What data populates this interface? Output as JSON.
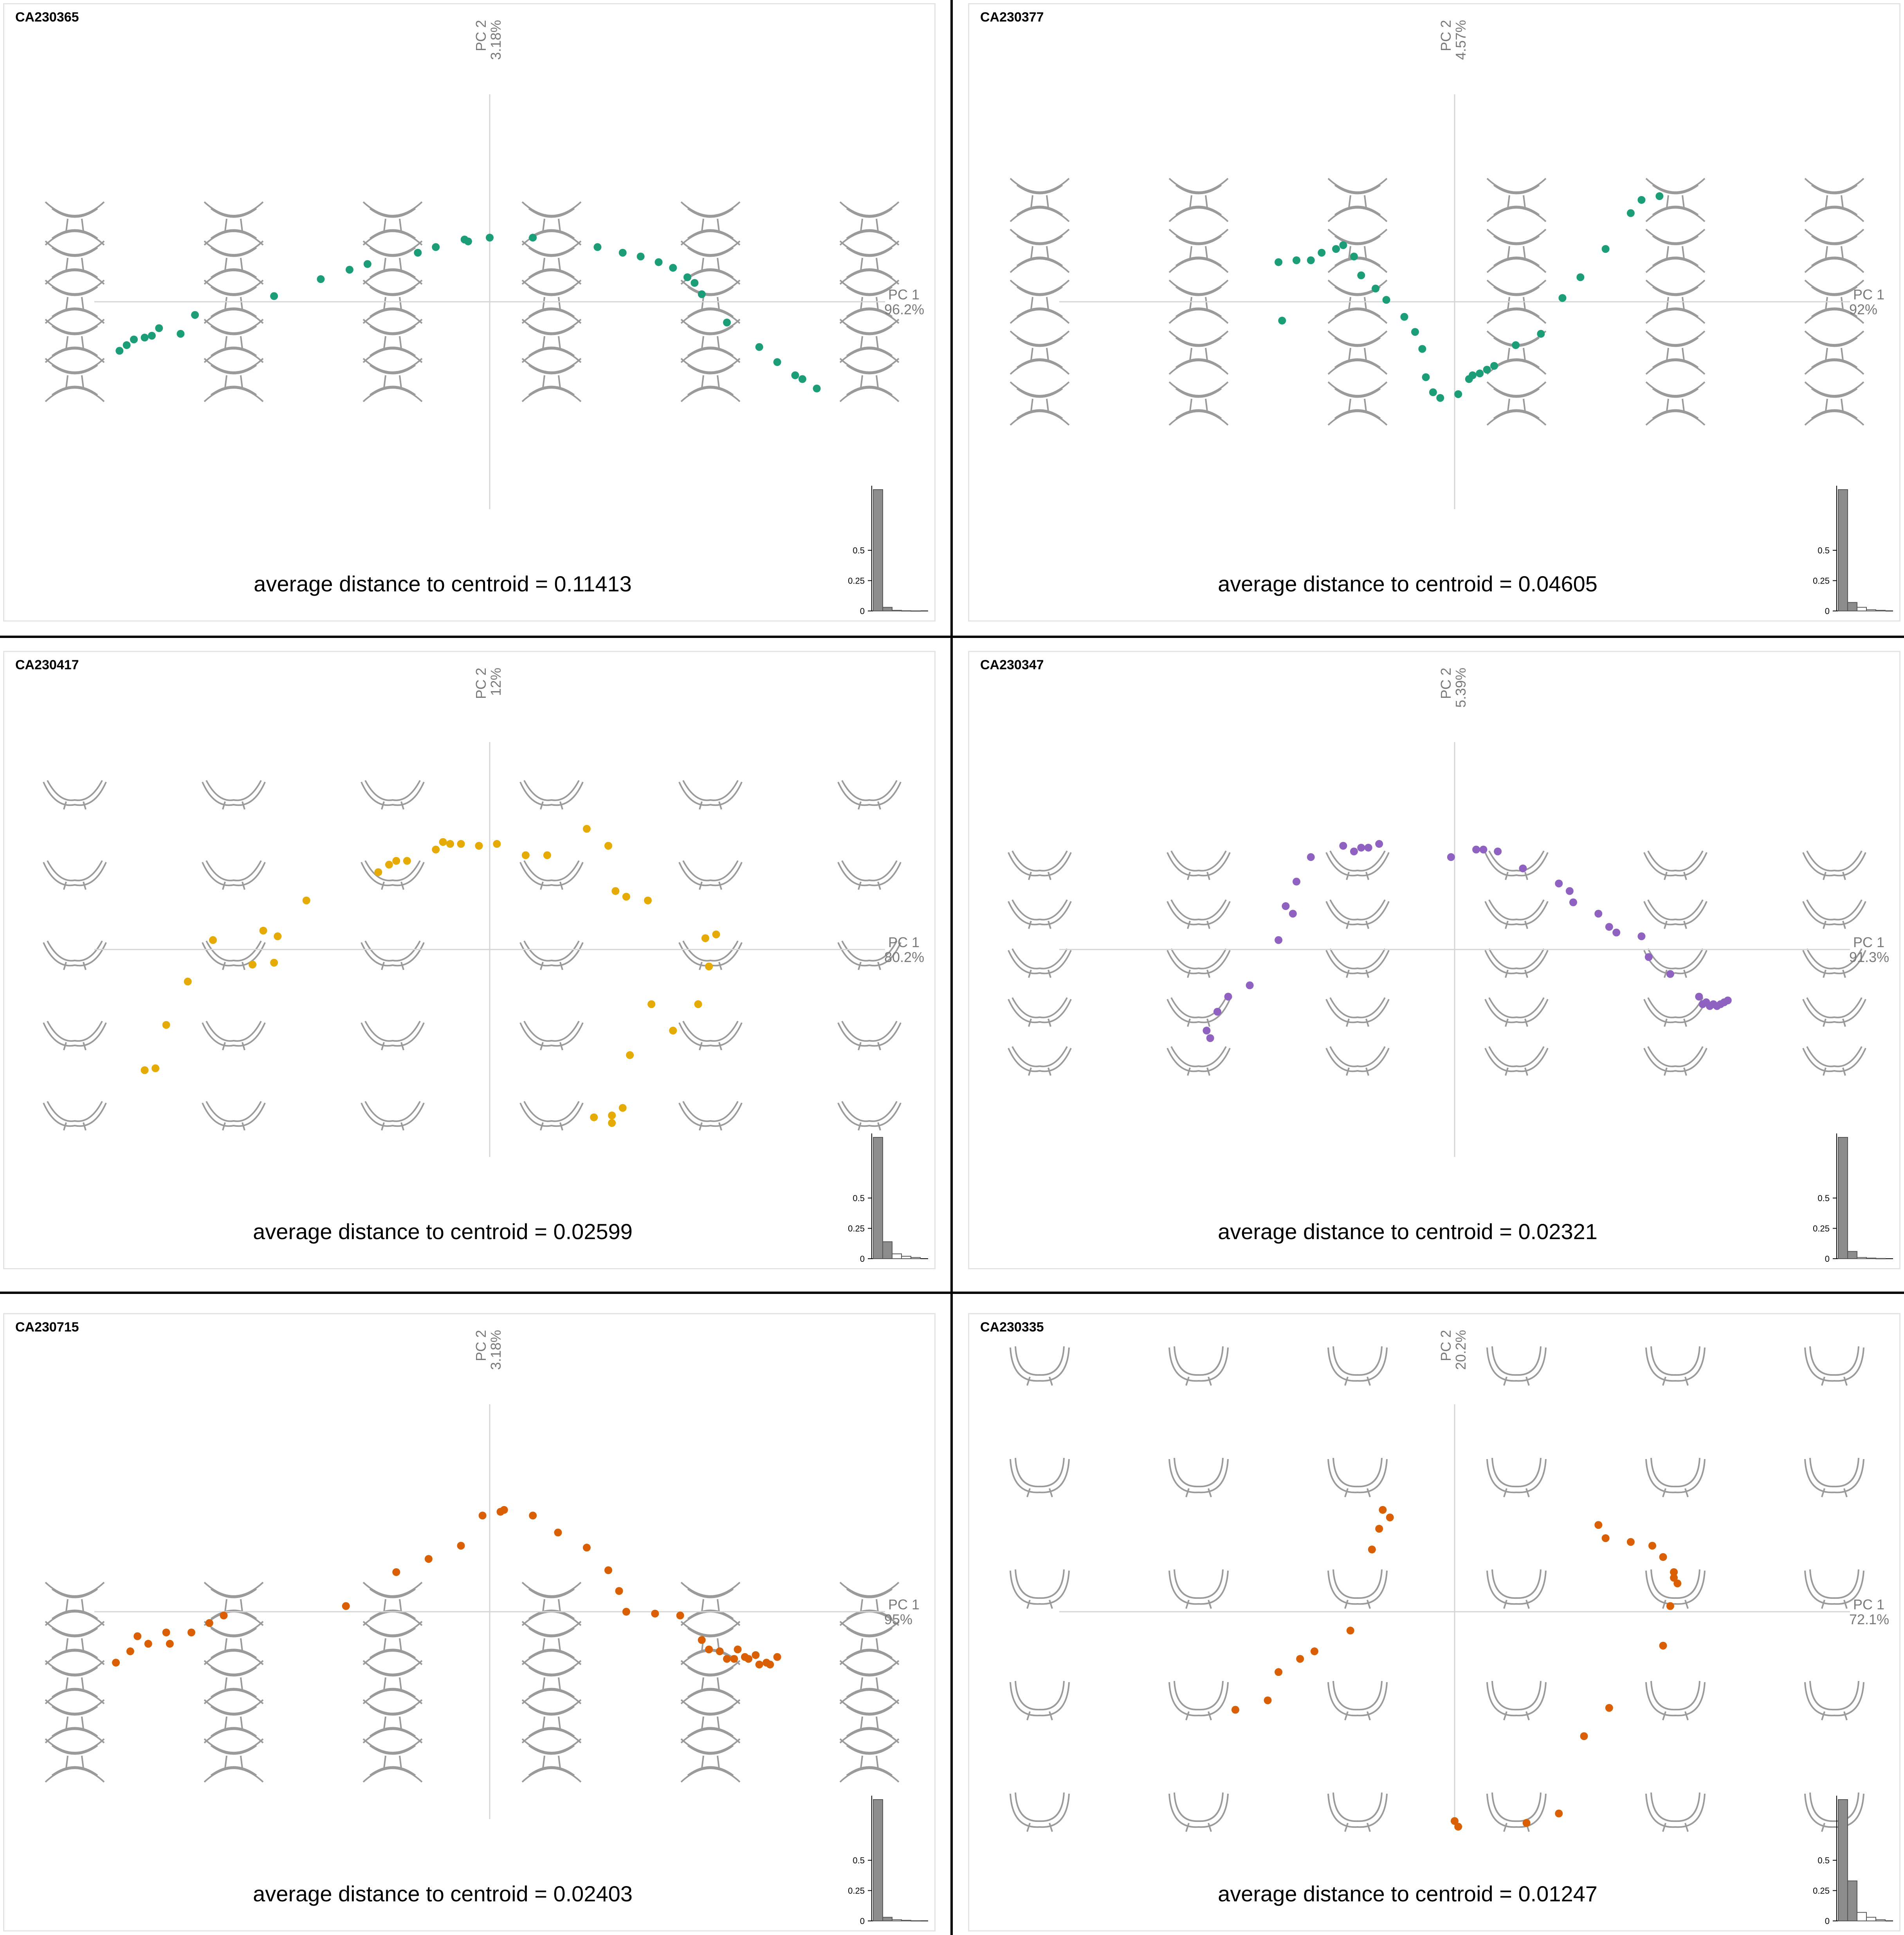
{
  "figure": {
    "layout": "3 rows x 2 columns of PCA morphospace panels"
  },
  "chart_data": [
    {
      "type": "scatter",
      "id": "CA230365",
      "color": "#1b9e77",
      "pc1_label": "PC 1",
      "pc1_percent": "96.2%",
      "pc2_label": "PC 2",
      "pc2_percent": "3.18%",
      "stat": "average distance to centroid = 0.11413",
      "shape_grid": {
        "cols": 6,
        "rows": 5,
        "shape": "wide-x"
      },
      "xlim": [
        -0.55,
        0.55
      ],
      "ylim": [
        -0.55,
        0.55
      ],
      "axis_origin": [
        0.0,
        0.0
      ],
      "points": [
        [
          -0.515,
          -0.13
        ],
        [
          -0.505,
          -0.115
        ],
        [
          -0.495,
          -0.1
        ],
        [
          -0.48,
          -0.095
        ],
        [
          -0.47,
          -0.09
        ],
        [
          -0.46,
          -0.07
        ],
        [
          -0.43,
          -0.085
        ],
        [
          -0.41,
          -0.035
        ],
        [
          -0.3,
          0.015
        ],
        [
          -0.235,
          0.06
        ],
        [
          -0.195,
          0.085
        ],
        [
          -0.17,
          0.1
        ],
        [
          -0.1,
          0.13
        ],
        [
          -0.075,
          0.145
        ],
        [
          -0.035,
          0.165
        ],
        [
          -0.03,
          0.16
        ],
        [
          0.0,
          0.17
        ],
        [
          0.06,
          0.17
        ],
        [
          0.15,
          0.145
        ],
        [
          0.185,
          0.13
        ],
        [
          0.21,
          0.12
        ],
        [
          0.235,
          0.105
        ],
        [
          0.255,
          0.09
        ],
        [
          0.275,
          0.065
        ],
        [
          0.285,
          0.05
        ],
        [
          0.295,
          0.02
        ],
        [
          0.33,
          -0.055
        ],
        [
          0.375,
          -0.12
        ],
        [
          0.4,
          -0.16
        ],
        [
          0.425,
          -0.195
        ],
        [
          0.435,
          -0.205
        ],
        [
          0.455,
          -0.23
        ]
      ],
      "histogram": {
        "values": [
          1.0,
          0.03,
          0.005,
          0.002,
          0.001
        ],
        "yticks": [
          0,
          0.25,
          0.5
        ]
      }
    },
    {
      "type": "scatter",
      "id": "CA230377",
      "color": "#1b9e77",
      "pc1_label": "PC 1",
      "pc1_percent": "92%",
      "pc2_label": "PC 2",
      "pc2_percent": "4.57%",
      "stat": "average distance to centroid = 0.04605",
      "shape_grid": {
        "cols": 6,
        "rows": 5,
        "shape": "wide-x"
      },
      "xlim": [
        -0.55,
        0.55
      ],
      "ylim": [
        -0.55,
        0.55
      ],
      "axis_origin": [
        0.0,
        0.0
      ],
      "points": [
        [
          -0.245,
          0.105
        ],
        [
          -0.24,
          -0.05
        ],
        [
          -0.22,
          0.11
        ],
        [
          -0.2,
          0.11
        ],
        [
          -0.185,
          0.13
        ],
        [
          -0.165,
          0.14
        ],
        [
          -0.155,
          0.15
        ],
        [
          -0.14,
          0.12
        ],
        [
          -0.13,
          0.07
        ],
        [
          -0.11,
          0.035
        ],
        [
          -0.095,
          0.005
        ],
        [
          -0.07,
          -0.04
        ],
        [
          -0.055,
          -0.08
        ],
        [
          -0.045,
          -0.125
        ],
        [
          -0.04,
          -0.2
        ],
        [
          -0.03,
          -0.24
        ],
        [
          -0.02,
          -0.255
        ],
        [
          0.005,
          -0.245
        ],
        [
          0.02,
          -0.205
        ],
        [
          0.025,
          -0.195
        ],
        [
          0.035,
          -0.19
        ],
        [
          0.045,
          -0.18
        ],
        [
          0.055,
          -0.17
        ],
        [
          0.085,
          -0.115
        ],
        [
          0.12,
          -0.085
        ],
        [
          0.15,
          0.01
        ],
        [
          0.175,
          0.065
        ],
        [
          0.21,
          0.14
        ],
        [
          0.245,
          0.235
        ],
        [
          0.26,
          0.27
        ],
        [
          0.285,
          0.28
        ]
      ],
      "histogram": {
        "values": [
          1.0,
          0.07,
          0.03,
          0.01,
          0.005
        ],
        "yticks": [
          0,
          0.25,
          0.5
        ]
      }
    },
    {
      "type": "scatter",
      "id": "CA230417",
      "color": "#e6ab02",
      "pc1_label": "PC 1",
      "pc1_percent": "80.2%",
      "pc2_label": "PC 2",
      "pc2_percent": "12%",
      "stat": "average distance to centroid = 0.02599",
      "shape_grid": {
        "cols": 6,
        "rows": 5,
        "shape": "shallow-u"
      },
      "xlim": [
        -0.55,
        0.55
      ],
      "ylim": [
        -0.55,
        0.55
      ],
      "axis_origin": [
        0.0,
        0.0
      ],
      "points": [
        [
          -0.48,
          -0.32
        ],
        [
          -0.465,
          -0.315
        ],
        [
          -0.45,
          -0.2
        ],
        [
          -0.42,
          -0.085
        ],
        [
          -0.385,
          0.025
        ],
        [
          -0.33,
          -0.04
        ],
        [
          -0.315,
          0.05
        ],
        [
          -0.295,
          0.035
        ],
        [
          -0.3,
          -0.035
        ],
        [
          -0.255,
          0.13
        ],
        [
          -0.155,
          0.205
        ],
        [
          -0.14,
          0.225
        ],
        [
          -0.13,
          0.235
        ],
        [
          -0.115,
          0.235
        ],
        [
          -0.075,
          0.265
        ],
        [
          -0.065,
          0.285
        ],
        [
          -0.055,
          0.28
        ],
        [
          -0.04,
          0.28
        ],
        [
          -0.015,
          0.275
        ],
        [
          0.01,
          0.28
        ],
        [
          0.05,
          0.25
        ],
        [
          0.08,
          0.25
        ],
        [
          0.135,
          0.32
        ],
        [
          0.165,
          0.275
        ],
        [
          0.175,
          0.155
        ],
        [
          0.19,
          0.14
        ],
        [
          0.22,
          0.13
        ],
        [
          0.225,
          -0.145
        ],
        [
          0.195,
          -0.28
        ],
        [
          0.185,
          -0.42
        ],
        [
          0.17,
          -0.44
        ],
        [
          0.17,
          -0.46
        ],
        [
          0.145,
          -0.445
        ],
        [
          0.3,
          0.03
        ],
        [
          0.315,
          0.04
        ],
        [
          0.305,
          -0.045
        ],
        [
          0.29,
          -0.145
        ],
        [
          0.255,
          -0.215
        ]
      ],
      "histogram": {
        "values": [
          1.0,
          0.14,
          0.04,
          0.02,
          0.01
        ],
        "yticks": [
          0,
          0.25,
          0.5
        ]
      }
    },
    {
      "type": "scatter",
      "id": "CA230347",
      "color": "#8f62c2",
      "pc1_label": "PC 1",
      "pc1_percent": "91.3%",
      "pc2_label": "PC 2",
      "pc2_percent": "5.39%",
      "stat": "average distance to centroid = 0.02321",
      "shape_grid": {
        "cols": 6,
        "rows": 5,
        "shape": "shallow-u"
      },
      "xlim": [
        -0.55,
        0.55
      ],
      "ylim": [
        -0.55,
        0.55
      ],
      "axis_origin": [
        0.0,
        0.0
      ],
      "points": [
        [
          -0.345,
          -0.215
        ],
        [
          -0.34,
          -0.235
        ],
        [
          -0.33,
          -0.165
        ],
        [
          -0.315,
          -0.125
        ],
        [
          -0.285,
          -0.095
        ],
        [
          -0.245,
          0.025
        ],
        [
          -0.235,
          0.115
        ],
        [
          -0.225,
          0.095
        ],
        [
          -0.22,
          0.18
        ],
        [
          -0.2,
          0.245
        ],
        [
          -0.155,
          0.275
        ],
        [
          -0.14,
          0.26
        ],
        [
          -0.13,
          0.27
        ],
        [
          -0.12,
          0.27
        ],
        [
          -0.105,
          0.28
        ],
        [
          -0.005,
          0.245
        ],
        [
          0.03,
          0.265
        ],
        [
          0.04,
          0.265
        ],
        [
          0.06,
          0.26
        ],
        [
          0.095,
          0.215
        ],
        [
          0.145,
          0.175
        ],
        [
          0.16,
          0.155
        ],
        [
          0.165,
          0.125
        ],
        [
          0.2,
          0.095
        ],
        [
          0.215,
          0.06
        ],
        [
          0.225,
          0.045
        ],
        [
          0.26,
          0.035
        ],
        [
          0.27,
          -0.02
        ],
        [
          0.3,
          -0.065
        ],
        [
          0.34,
          -0.125
        ],
        [
          0.345,
          -0.145
        ],
        [
          0.35,
          -0.14
        ],
        [
          0.355,
          -0.15
        ],
        [
          0.36,
          -0.145
        ],
        [
          0.365,
          -0.15
        ],
        [
          0.37,
          -0.145
        ],
        [
          0.375,
          -0.14
        ],
        [
          0.38,
          -0.135
        ]
      ],
      "histogram": {
        "values": [
          1.0,
          0.06,
          0.01,
          0.005,
          0.002
        ],
        "yticks": [
          0,
          0.25,
          0.5
        ]
      }
    },
    {
      "type": "scatter",
      "id": "CA230715",
      "color": "#d95f02",
      "pc1_label": "PC 1",
      "pc1_percent": "95%",
      "pc2_label": "PC 2",
      "pc2_percent": "3.18%",
      "stat": "average distance to centroid = 0.02403",
      "shape_grid": {
        "cols": 6,
        "rows": 5,
        "shape": "wide-x"
      },
      "xlim": [
        -0.55,
        0.55
      ],
      "ylim": [
        -0.55,
        0.55
      ],
      "axis_origin": [
        0.0,
        0.0
      ],
      "points": [
        [
          -0.52,
          -0.135
        ],
        [
          -0.5,
          -0.105
        ],
        [
          -0.49,
          -0.065
        ],
        [
          -0.475,
          -0.085
        ],
        [
          -0.45,
          -0.055
        ],
        [
          -0.445,
          -0.085
        ],
        [
          -0.415,
          -0.055
        ],
        [
          -0.39,
          -0.03
        ],
        [
          -0.37,
          -0.01
        ],
        [
          -0.2,
          0.015
        ],
        [
          -0.13,
          0.105
        ],
        [
          -0.085,
          0.14
        ],
        [
          -0.04,
          0.175
        ],
        [
          -0.01,
          0.255
        ],
        [
          0.015,
          0.265
        ],
        [
          0.02,
          0.27
        ],
        [
          0.06,
          0.255
        ],
        [
          0.095,
          0.21
        ],
        [
          0.135,
          0.17
        ],
        [
          0.165,
          0.11
        ],
        [
          0.18,
          0.055
        ],
        [
          0.19,
          0.0
        ],
        [
          0.23,
          -0.005
        ],
        [
          0.265,
          -0.01
        ],
        [
          0.295,
          -0.075
        ],
        [
          0.305,
          -0.1
        ],
        [
          0.32,
          -0.105
        ],
        [
          0.33,
          -0.125
        ],
        [
          0.34,
          -0.125
        ],
        [
          0.345,
          -0.1
        ],
        [
          0.355,
          -0.12
        ],
        [
          0.36,
          -0.125
        ],
        [
          0.37,
          -0.115
        ],
        [
          0.375,
          -0.14
        ],
        [
          0.385,
          -0.135
        ],
        [
          0.39,
          -0.14
        ],
        [
          0.4,
          -0.12
        ]
      ],
      "histogram": {
        "values": [
          1.0,
          0.03,
          0.01,
          0.005,
          0.002
        ],
        "yticks": [
          0,
          0.25,
          0.5
        ]
      }
    },
    {
      "type": "scatter",
      "id": "CA230335",
      "color": "#d95f02",
      "pc1_label": "PC 1",
      "pc1_percent": "72.1%",
      "pc2_label": "PC 2",
      "pc2_percent": "20.2%",
      "stat": "average distance to centroid = 0.01247",
      "shape_grid": {
        "cols": 6,
        "rows": 5,
        "shape": "deep-u"
      },
      "xlim": [
        -0.55,
        0.55
      ],
      "ylim": [
        -0.55,
        0.55
      ],
      "axis_origin": [
        0.0,
        0.0
      ],
      "points": [
        [
          -0.305,
          -0.26
        ],
        [
          -0.26,
          -0.235
        ],
        [
          -0.245,
          -0.16
        ],
        [
          -0.215,
          -0.125
        ],
        [
          -0.195,
          -0.105
        ],
        [
          -0.145,
          -0.05
        ],
        [
          -0.115,
          0.165
        ],
        [
          -0.105,
          0.22
        ],
        [
          -0.1,
          0.27
        ],
        [
          -0.09,
          0.25
        ],
        [
          0.0,
          -0.555
        ],
        [
          0.005,
          -0.57
        ],
        [
          0.1,
          -0.56
        ],
        [
          0.145,
          -0.535
        ],
        [
          0.18,
          -0.33
        ],
        [
          0.215,
          -0.255
        ],
        [
          0.2,
          0.23
        ],
        [
          0.21,
          0.195
        ],
        [
          0.245,
          0.185
        ],
        [
          0.275,
          0.175
        ],
        [
          0.29,
          0.145
        ],
        [
          0.305,
          0.105
        ],
        [
          0.305,
          0.09
        ],
        [
          0.31,
          0.075
        ],
        [
          0.3,
          0.015
        ],
        [
          0.29,
          -0.09
        ]
      ],
      "histogram": {
        "values": [
          1.0,
          0.33,
          0.07,
          0.03,
          0.01
        ],
        "yticks": [
          0,
          0.25,
          0.5
        ]
      }
    }
  ]
}
